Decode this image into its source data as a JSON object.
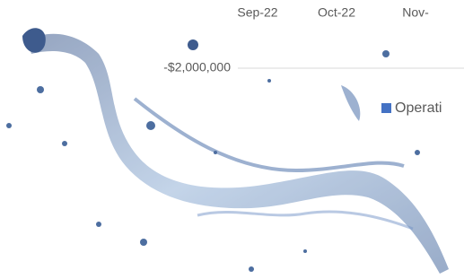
{
  "chart_data": {
    "type": "bar",
    "categories": [
      "Sep-22",
      "Oct-22",
      "Nov-"
    ],
    "series": [
      {
        "name": "Operati",
        "color": "#4472c4",
        "values": [
          null,
          null,
          null
        ]
      }
    ],
    "ylim": [
      -4000000,
      0
    ],
    "yticks": [
      {
        "value": -2000000,
        "label": "-$2,000,000"
      }
    ],
    "grid": true
  }
}
